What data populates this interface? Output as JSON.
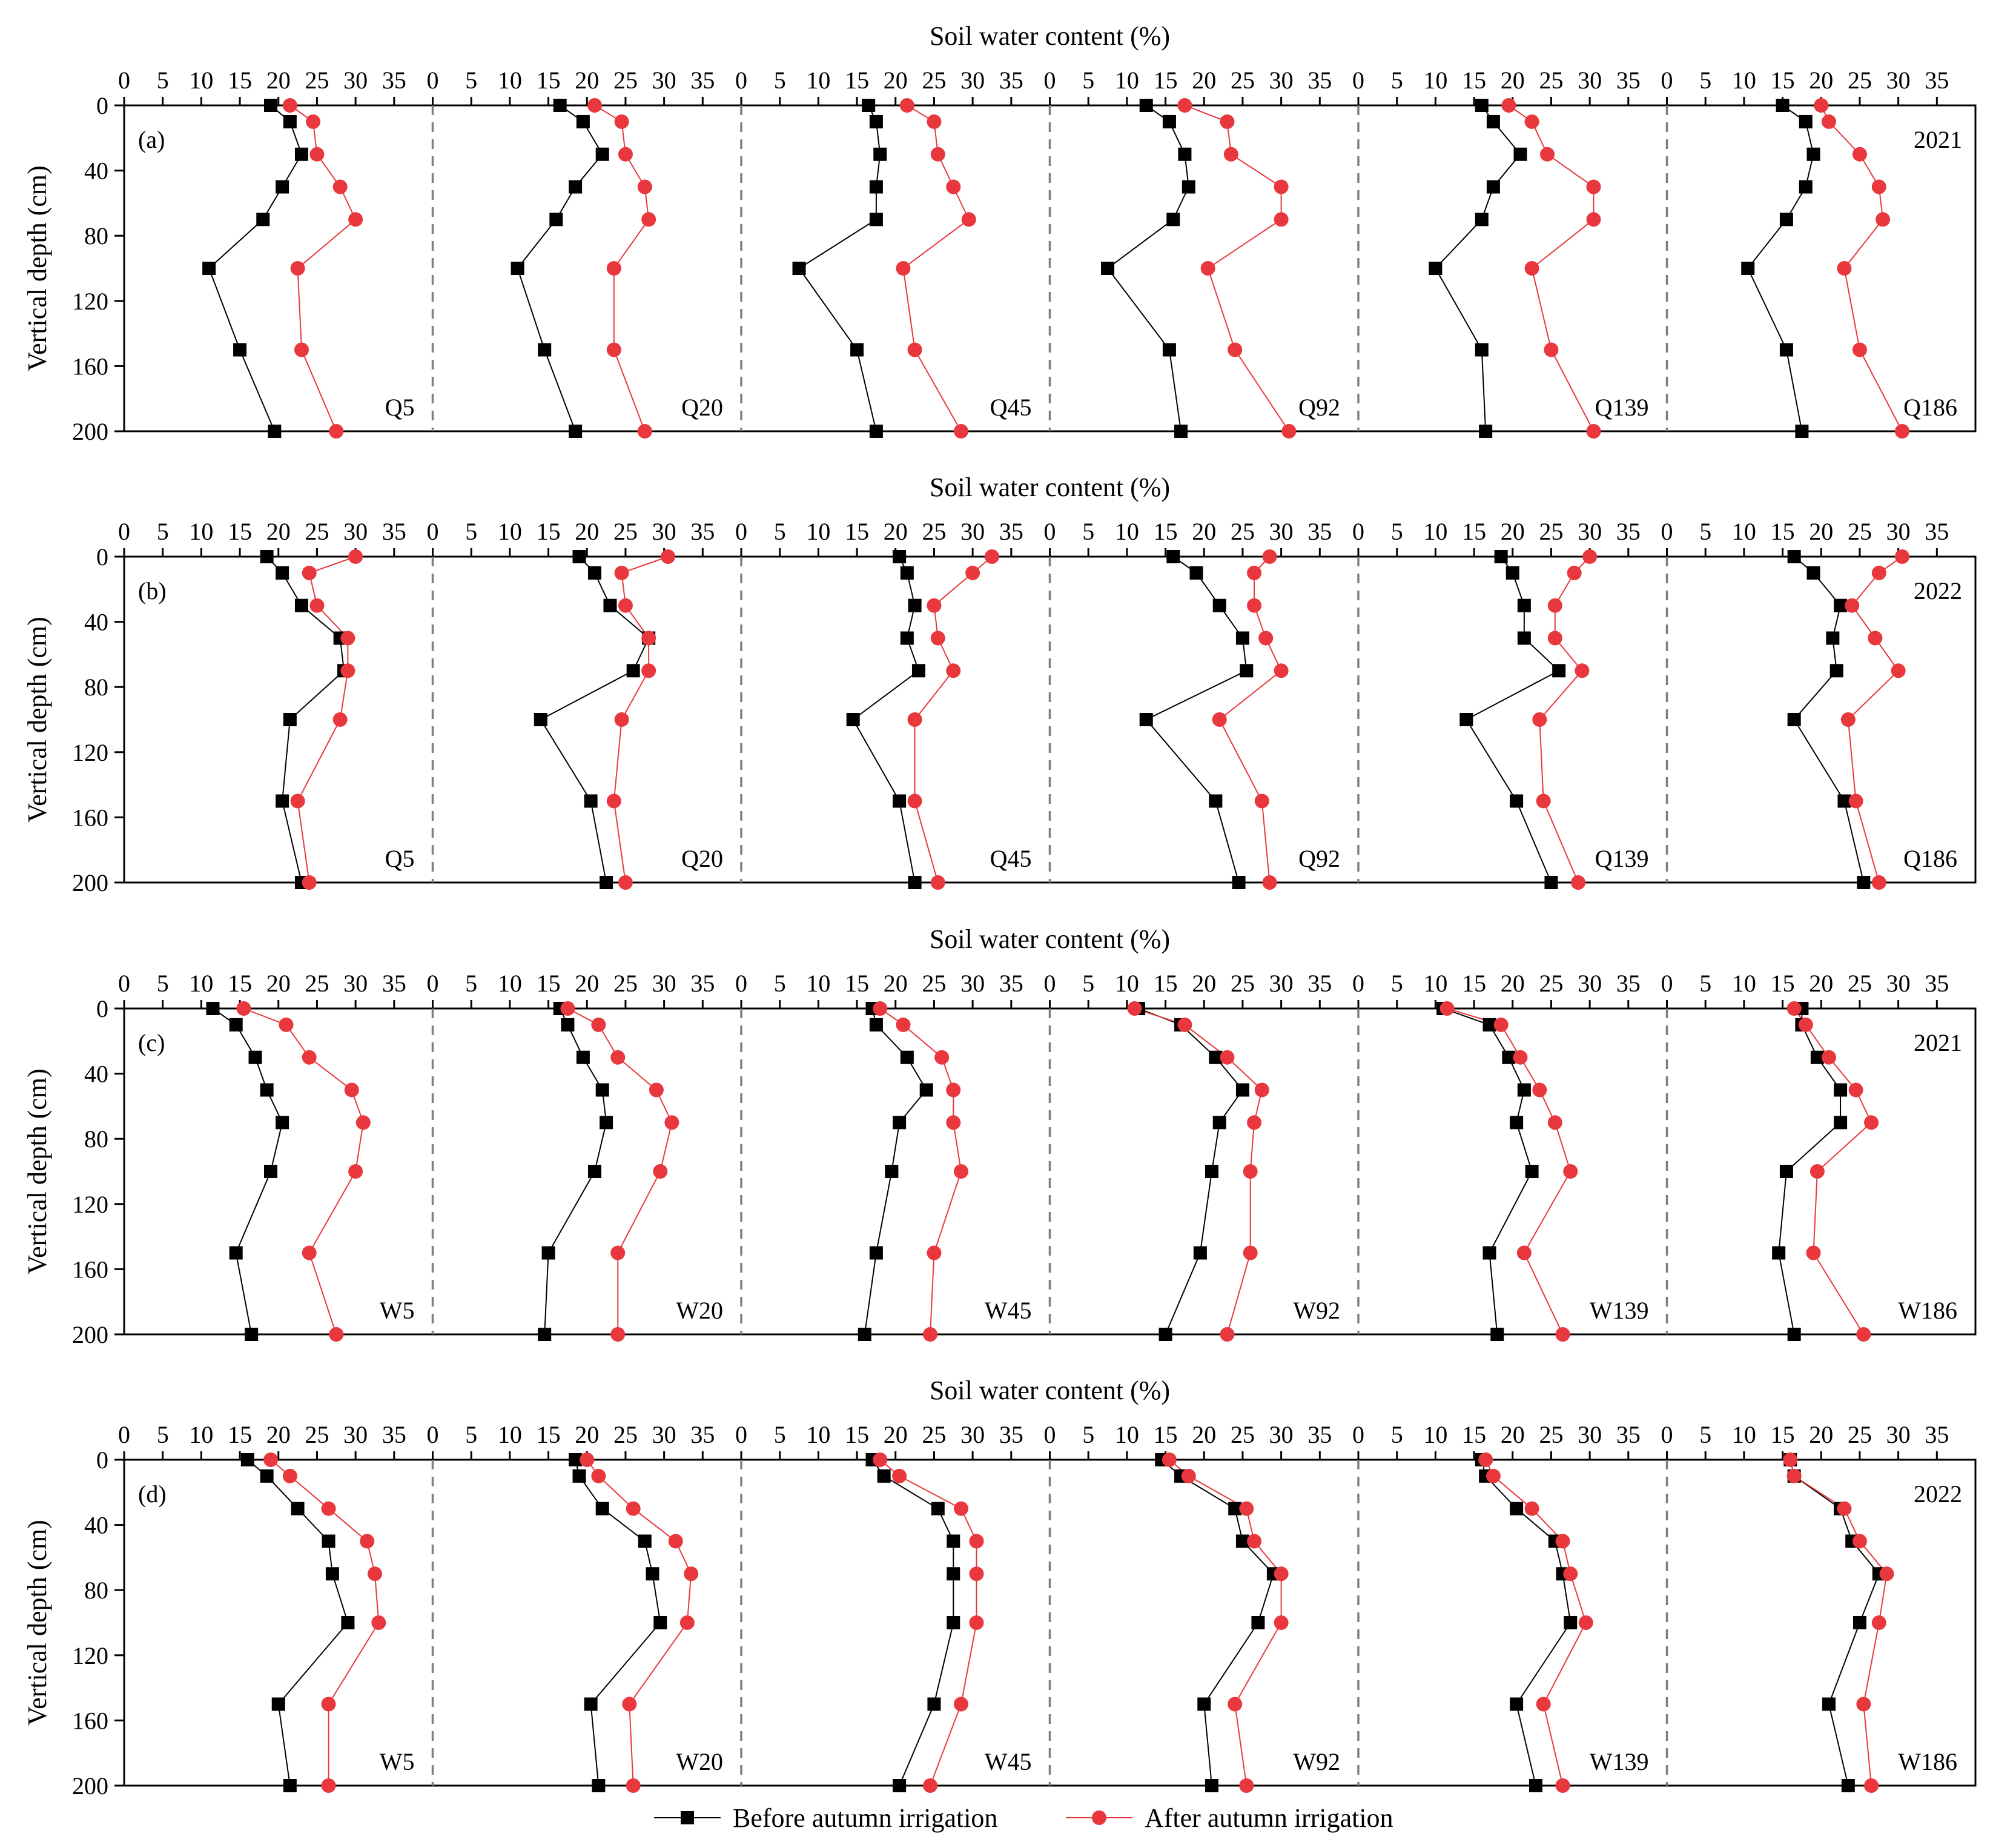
{
  "chart_data": {
    "type": "line",
    "xlabel": "Soil water content (%)",
    "ylabel": "Vertical depth (cm)",
    "x_ticks": [
      0,
      5,
      10,
      15,
      20,
      25,
      30,
      35
    ],
    "y_ticks": [
      0,
      40,
      80,
      120,
      160,
      200
    ],
    "xlim": [
      0,
      40
    ],
    "ylim": [
      200,
      0
    ],
    "depths": [
      0,
      10,
      30,
      50,
      70,
      100,
      150,
      200
    ],
    "legend": {
      "placement": "bottom-center",
      "entries": [
        {
          "label": "Before autumn irrigation",
          "color": "#000000",
          "marker": "square"
        },
        {
          "label": "After autumn irrigation",
          "color": "#e8383d",
          "marker": "circle"
        }
      ]
    },
    "rows": [
      {
        "letter": "(a)",
        "year": "2021",
        "sites": [
          {
            "name": "Q5",
            "before": [
              19.0,
              21.5,
              23.0,
              20.5,
              18.0,
              11.0,
              15.0,
              19.5
            ],
            "after": [
              21.5,
              24.5,
              25.0,
              28.0,
              30.0,
              22.5,
              23.0,
              27.5
            ]
          },
          {
            "name": "Q20",
            "before": [
              16.5,
              19.5,
              22.0,
              18.5,
              16.0,
              11.0,
              14.5,
              18.5
            ],
            "after": [
              21.0,
              24.5,
              25.0,
              27.5,
              28.0,
              23.5,
              23.5,
              27.5
            ]
          },
          {
            "name": "Q45",
            "before": [
              16.5,
              17.5,
              18.0,
              17.5,
              17.5,
              7.5,
              15.0,
              17.5
            ],
            "after": [
              21.5,
              25.0,
              25.5,
              27.5,
              29.5,
              21.0,
              22.5,
              28.5
            ]
          },
          {
            "name": "Q92",
            "before": [
              12.5,
              15.5,
              17.5,
              18.0,
              16.0,
              7.5,
              15.5,
              17.0
            ],
            "after": [
              17.5,
              23.0,
              23.5,
              30.0,
              30.0,
              20.5,
              24.0,
              31.0
            ]
          },
          {
            "name": "Q139",
            "before": [
              16.0,
              17.5,
              21.0,
              17.5,
              16.0,
              10.0,
              16.0,
              16.5
            ],
            "after": [
              19.5,
              22.5,
              24.5,
              30.5,
              30.5,
              22.5,
              25.0,
              30.5
            ]
          },
          {
            "name": "Q186",
            "before": [
              15.0,
              18.0,
              19.0,
              18.0,
              15.5,
              10.5,
              15.5,
              17.5
            ],
            "after": [
              20.0,
              21.0,
              25.0,
              27.5,
              28.0,
              23.0,
              25.0,
              30.5
            ]
          }
        ]
      },
      {
        "letter": "(b)",
        "year": "2022",
        "sites": [
          {
            "name": "Q5",
            "before": [
              18.5,
              20.5,
              23.0,
              28.0,
              28.5,
              21.5,
              20.5,
              23.0
            ],
            "after": [
              30.0,
              24.0,
              25.0,
              29.0,
              29.0,
              28.0,
              22.5,
              24.0
            ]
          },
          {
            "name": "Q20",
            "before": [
              19.0,
              21.0,
              23.0,
              28.0,
              26.0,
              14.0,
              20.5,
              22.5
            ],
            "after": [
              30.5,
              24.5,
              25.0,
              28.0,
              28.0,
              24.5,
              23.5,
              25.0
            ]
          },
          {
            "name": "Q45",
            "before": [
              20.5,
              21.5,
              22.5,
              21.5,
              23.0,
              14.5,
              20.5,
              22.5
            ],
            "after": [
              32.5,
              30.0,
              25.0,
              25.5,
              27.5,
              22.5,
              22.5,
              25.5
            ]
          },
          {
            "name": "Q92",
            "before": [
              16.0,
              19.0,
              22.0,
              25.0,
              25.5,
              12.5,
              21.5,
              24.5
            ],
            "after": [
              28.5,
              26.5,
              26.5,
              28.0,
              30.0,
              22.0,
              27.5,
              28.5
            ]
          },
          {
            "name": "Q139",
            "before": [
              18.5,
              20.0,
              21.5,
              21.5,
              26.0,
              14.0,
              20.5,
              25.0
            ],
            "after": [
              30.0,
              28.0,
              25.5,
              25.5,
              29.0,
              23.5,
              24.0,
              28.5
            ]
          },
          {
            "name": "Q186",
            "before": [
              16.5,
              19.0,
              22.5,
              21.5,
              22.0,
              16.5,
              23.0,
              25.5
            ],
            "after": [
              30.5,
              27.5,
              24.0,
              27.0,
              30.0,
              23.5,
              24.5,
              27.5
            ]
          }
        ]
      },
      {
        "letter": "(c)",
        "year": "2021",
        "sites": [
          {
            "name": "W5",
            "before": [
              11.5,
              14.5,
              17.0,
              18.5,
              20.5,
              19.0,
              14.5,
              16.5
            ],
            "after": [
              15.5,
              21.0,
              24.0,
              29.5,
              31.0,
              30.0,
              24.0,
              27.5
            ]
          },
          {
            "name": "W20",
            "before": [
              16.5,
              17.5,
              19.5,
              22.0,
              22.5,
              21.0,
              15.0,
              14.5
            ],
            "after": [
              17.5,
              21.5,
              24.0,
              29.0,
              31.0,
              29.5,
              24.0,
              24.0
            ]
          },
          {
            "name": "W45",
            "before": [
              17.0,
              17.5,
              21.5,
              24.0,
              20.5,
              19.5,
              17.5,
              16.0
            ],
            "after": [
              18.0,
              21.0,
              26.0,
              27.5,
              27.5,
              28.5,
              25.0,
              24.5
            ]
          },
          {
            "name": "W92",
            "before": [
              11.5,
              17.0,
              21.5,
              25.0,
              22.0,
              21.0,
              19.5,
              15.0
            ],
            "after": [
              11.0,
              17.5,
              23.0,
              27.5,
              26.5,
              26.0,
              26.0,
              23.0
            ]
          },
          {
            "name": "W139",
            "before": [
              11.0,
              17.0,
              19.5,
              21.5,
              20.5,
              22.5,
              17.0,
              18.0
            ],
            "after": [
              11.5,
              18.5,
              21.0,
              23.5,
              25.5,
              27.5,
              21.5,
              26.5
            ]
          },
          {
            "name": "W186",
            "before": [
              17.5,
              17.5,
              19.5,
              22.5,
              22.5,
              15.5,
              14.5,
              16.5
            ],
            "after": [
              16.5,
              18.0,
              21.0,
              24.5,
              26.5,
              19.5,
              19.0,
              25.5
            ]
          }
        ]
      },
      {
        "letter": "(d)",
        "year": "2022",
        "sites": [
          {
            "name": "W5",
            "before": [
              16.0,
              18.5,
              22.5,
              26.5,
              27.0,
              29.0,
              20.0,
              21.5
            ],
            "after": [
              19.0,
              21.5,
              26.5,
              31.5,
              32.5,
              33.0,
              26.5,
              26.5
            ]
          },
          {
            "name": "W20",
            "before": [
              18.5,
              19.0,
              22.0,
              27.5,
              28.5,
              29.5,
              20.5,
              21.5
            ],
            "after": [
              20.0,
              21.5,
              26.0,
              31.5,
              33.5,
              33.0,
              25.5,
              26.0
            ]
          },
          {
            "name": "W45",
            "before": [
              17.0,
              18.5,
              25.5,
              27.5,
              27.5,
              27.5,
              25.0,
              20.5
            ],
            "after": [
              18.0,
              20.5,
              28.5,
              30.5,
              30.5,
              30.5,
              28.5,
              24.5
            ]
          },
          {
            "name": "W92",
            "before": [
              14.5,
              17.0,
              24.0,
              25.0,
              29.0,
              27.0,
              20.0,
              21.0
            ],
            "after": [
              15.5,
              18.0,
              25.5,
              26.5,
              30.0,
              30.0,
              24.0,
              25.5
            ]
          },
          {
            "name": "W139",
            "before": [
              16.0,
              16.5,
              20.5,
              25.5,
              26.5,
              27.5,
              20.5,
              23.0
            ],
            "after": [
              16.5,
              17.5,
              22.5,
              26.5,
              27.5,
              29.5,
              24.0,
              26.5
            ]
          },
          {
            "name": "W186",
            "before": [
              16.0,
              16.5,
              22.5,
              24.0,
              27.5,
              25.0,
              21.0,
              23.5
            ],
            "after": [
              16.0,
              16.5,
              23.0,
              25.0,
              28.5,
              27.5,
              25.5,
              26.5
            ]
          }
        ]
      }
    ]
  }
}
